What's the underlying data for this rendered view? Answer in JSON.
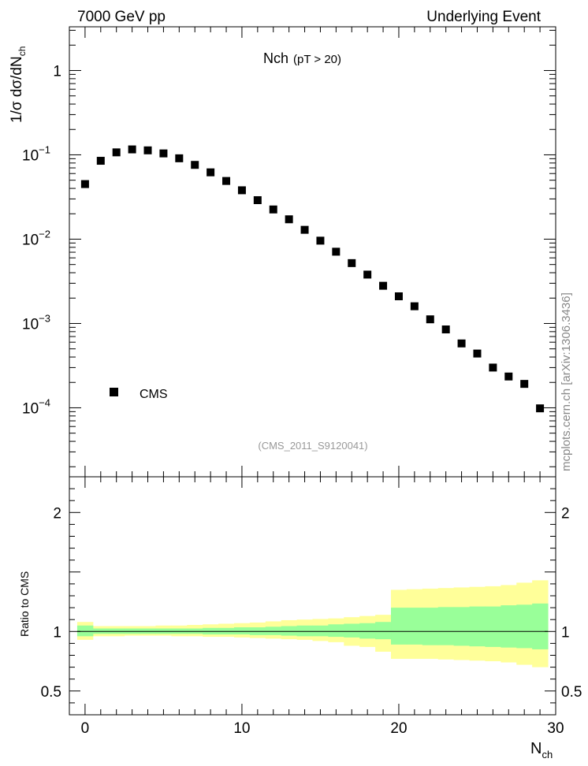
{
  "header": {
    "left": "7000 GeV pp",
    "right": "Underlying Event"
  },
  "watermark": "mcplots.cern.ch [arXiv:1306.3436]",
  "chart_data": [
    {
      "type": "scatter",
      "title": "Nch",
      "subtitle": "(pT > 20)",
      "ylabel": "1/σ dσ/dN",
      "ylabel_sub": "ch",
      "yscale": "log",
      "xlim": [
        -1,
        30
      ],
      "ylim": [
        1.52e-05,
        3.3
      ],
      "y_ticks": [
        {
          "v": 1,
          "label": "1",
          "exp": ""
        },
        {
          "v": 0.1,
          "label": "10",
          "exp": "−1"
        },
        {
          "v": 0.01,
          "label": "10",
          "exp": "−2"
        },
        {
          "v": 0.001,
          "label": "10",
          "exp": "−3"
        },
        {
          "v": 0.0001,
          "label": "10",
          "exp": "−4"
        }
      ],
      "reference": "(CMS_2011_S9120041)",
      "series": [
        {
          "name": "CMS",
          "marker": "square",
          "color": "#000000",
          "x": [
            0,
            1,
            2,
            3,
            4,
            5,
            6,
            7,
            8,
            9,
            10,
            11,
            12,
            13,
            14,
            15,
            16,
            17,
            18,
            19,
            20,
            21,
            22,
            23,
            24,
            25,
            26,
            27,
            28,
            29
          ],
          "y": [
            0.045,
            0.085,
            0.107,
            0.116,
            0.113,
            0.104,
            0.091,
            0.076,
            0.062,
            0.049,
            0.038,
            0.029,
            0.0225,
            0.0172,
            0.0129,
            0.0096,
            0.0071,
            0.0052,
            0.0038,
            0.0028,
            0.0021,
            0.0016,
            0.00112,
            0.00085,
            0.00058,
            0.00044,
            0.0003,
            0.000235,
            0.000192,
            9.85e-05
          ]
        }
      ],
      "legend": [
        {
          "label": "CMS",
          "marker": "square"
        }
      ]
    },
    {
      "type": "area",
      "xlabel": "N",
      "xlabel_sub": "ch",
      "ylabel": "Ratio to CMS",
      "xlim": [
        -1,
        30
      ],
      "ylim": [
        0.3,
        2.3
      ],
      "x_ticks": [
        0,
        10,
        20,
        30
      ],
      "y_ticks": [
        0.5,
        1,
        2
      ],
      "reference_line": 1,
      "bin_edges": [
        -0.5,
        0.5,
        1.5,
        2.5,
        3.5,
        4.5,
        5.5,
        6.5,
        7.5,
        8.5,
        9.5,
        10.5,
        11.5,
        12.5,
        13.5,
        14.5,
        15.5,
        16.5,
        17.5,
        18.5,
        19.5,
        20.5,
        21.5,
        22.5,
        23.5,
        24.5,
        25.5,
        26.5,
        27.5,
        28.5,
        29.5
      ],
      "bands": [
        {
          "name": "total uncertainty",
          "color": "#ffff99",
          "lo": [
            0.93,
            0.96,
            0.96,
            0.965,
            0.965,
            0.965,
            0.96,
            0.96,
            0.955,
            0.955,
            0.95,
            0.945,
            0.94,
            0.935,
            0.93,
            0.92,
            0.91,
            0.88,
            0.87,
            0.83,
            0.77,
            0.77,
            0.77,
            0.765,
            0.76,
            0.755,
            0.75,
            0.74,
            0.72,
            0.7
          ],
          "hi": [
            1.08,
            1.045,
            1.045,
            1.045,
            1.045,
            1.05,
            1.05,
            1.055,
            1.06,
            1.065,
            1.07,
            1.075,
            1.085,
            1.095,
            1.1,
            1.105,
            1.11,
            1.12,
            1.13,
            1.14,
            1.35,
            1.355,
            1.36,
            1.365,
            1.37,
            1.375,
            1.38,
            1.39,
            1.41,
            1.43
          ]
        },
        {
          "name": "statistical uncertainty",
          "color": "#99ff99",
          "lo": [
            0.96,
            0.98,
            0.98,
            0.98,
            0.98,
            0.98,
            0.98,
            0.98,
            0.975,
            0.975,
            0.975,
            0.97,
            0.97,
            0.965,
            0.96,
            0.96,
            0.955,
            0.95,
            0.94,
            0.935,
            0.89,
            0.89,
            0.885,
            0.885,
            0.88,
            0.875,
            0.87,
            0.865,
            0.86,
            0.85
          ],
          "hi": [
            1.05,
            1.025,
            1.025,
            1.025,
            1.025,
            1.025,
            1.025,
            1.025,
            1.03,
            1.03,
            1.035,
            1.035,
            1.04,
            1.045,
            1.05,
            1.05,
            1.06,
            1.065,
            1.07,
            1.08,
            1.2,
            1.2,
            1.2,
            1.205,
            1.205,
            1.21,
            1.21,
            1.22,
            1.225,
            1.235
          ]
        }
      ]
    }
  ]
}
